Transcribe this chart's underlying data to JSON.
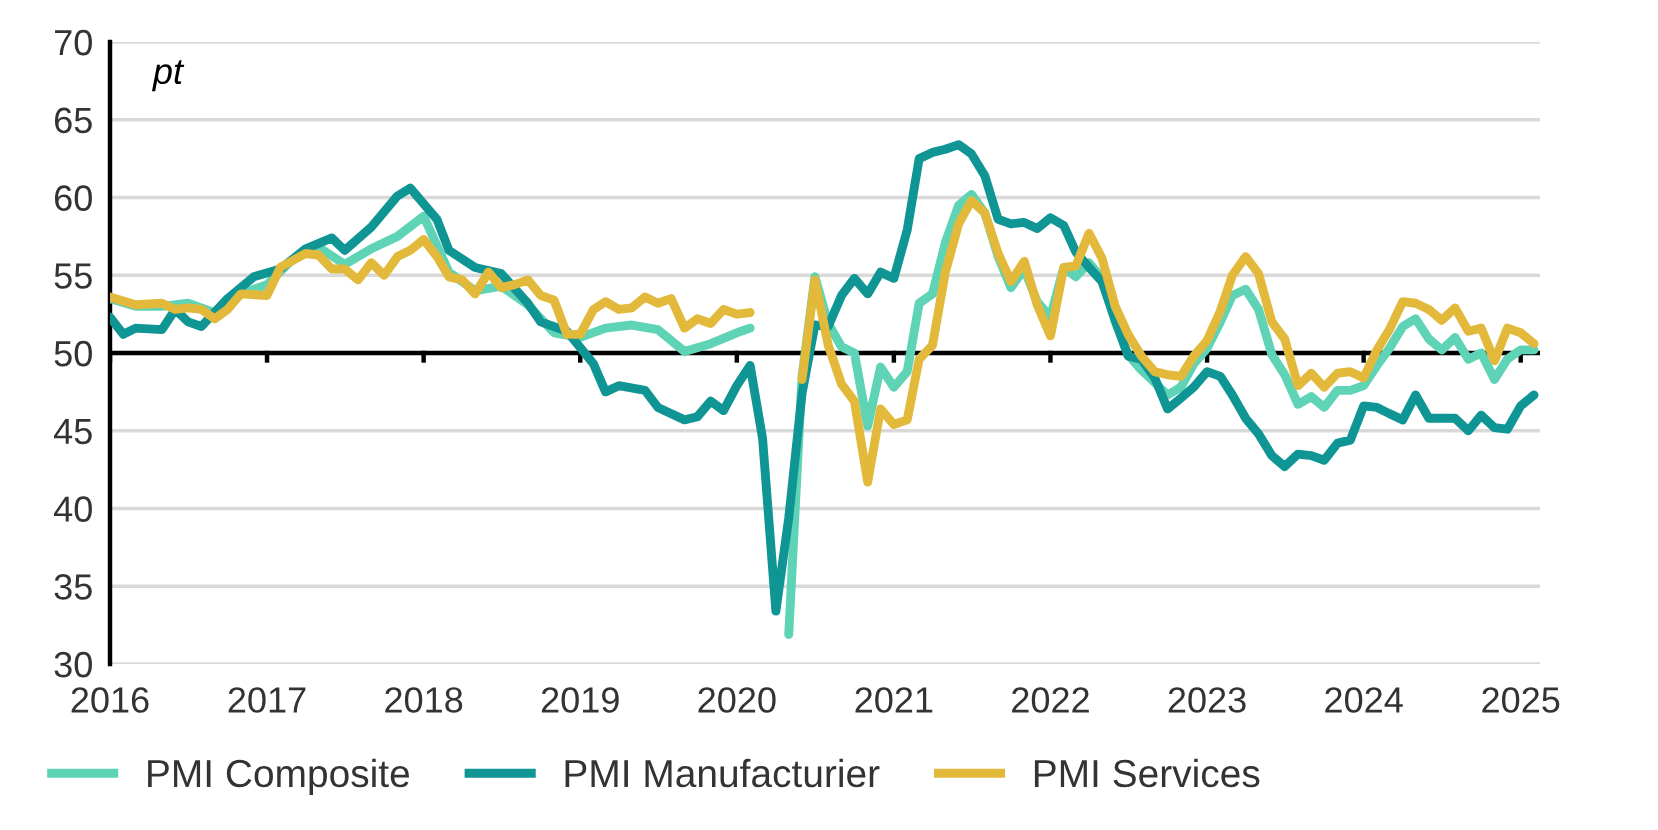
{
  "chart_data": {
    "type": "line",
    "ylabel": "pt",
    "xlim": [
      "2016-01-01",
      "2025-02-15"
    ],
    "xticks": [
      {
        "value": "2016-01-01",
        "label": "2016"
      },
      {
        "value": "2017-01-01",
        "label": "2017"
      },
      {
        "value": "2018-01-01",
        "label": "2018"
      },
      {
        "value": "2019-01-01",
        "label": "2019"
      },
      {
        "value": "2020-01-01",
        "label": "2020"
      },
      {
        "value": "2021-01-01",
        "label": "2021"
      },
      {
        "value": "2022-01-01",
        "label": "2022"
      },
      {
        "value": "2023-01-01",
        "label": "2023"
      },
      {
        "value": "2024-01-01",
        "label": "2024"
      },
      {
        "value": "2025-01-01",
        "label": "2025"
      }
    ],
    "ylim": [
      30,
      70
    ],
    "yticks": [
      30,
      35,
      40,
      45,
      50,
      55,
      60,
      65,
      70
    ],
    "grid": "y",
    "legend": "bottom",
    "line_style": "solid",
    "marker": "none",
    "ref_lines": [
      {
        "axis": "y",
        "value": 50,
        "color": "#000000"
      }
    ],
    "series": [
      {
        "name": "PMI Composite",
        "color": "#5fd3b5",
        "x": [
          "2016-01",
          "2016-03",
          "2016-05",
          "2016-07",
          "2016-09",
          "2016-11",
          "2017-01",
          "2017-03",
          "2017-05",
          "2017-07",
          "2017-09",
          "2017-11",
          "2018-01",
          "2018-03",
          "2018-05",
          "2018-07",
          "2018-09",
          "2018-11",
          "2019-01",
          "2019-03",
          "2019-05",
          "2019-07",
          "2019-09",
          "2019-11",
          "2020-01",
          "2020-02",
          "2020-03",
          "2020-04",
          "2020-05",
          "2020-06",
          "2020-07",
          "2020-08",
          "2020-09",
          "2020-10",
          "2020-11",
          "2020-12",
          "2021-01",
          "2021-02",
          "2021-03",
          "2021-04",
          "2021-05",
          "2021-06",
          "2021-07",
          "2021-08",
          "2021-09",
          "2021-10",
          "2021-11",
          "2021-12",
          "2022-01",
          "2022-02",
          "2022-03",
          "2022-04",
          "2022-05",
          "2022-06",
          "2022-07",
          "2022-08",
          "2022-09",
          "2022-10",
          "2022-11",
          "2022-12",
          "2023-01",
          "2023-02",
          "2023-03",
          "2023-04",
          "2023-05",
          "2023-06",
          "2023-07",
          "2023-08",
          "2023-09",
          "2023-10",
          "2023-11",
          "2023-12",
          "2024-01",
          "2024-02",
          "2024-03",
          "2024-04",
          "2024-05",
          "2024-06",
          "2024-07",
          "2024-08",
          "2024-09",
          "2024-10",
          "2024-11",
          "2024-12",
          "2025-01",
          "2025-02"
        ],
        "values": [
          53.5,
          53,
          53,
          53.2,
          52.6,
          53.8,
          54.4,
          56,
          56.8,
          55.7,
          56.7,
          57.5,
          58.8,
          55.2,
          54,
          54.3,
          53.1,
          51.3,
          51,
          51.6,
          51.8,
          51.5,
          50.1,
          50.6,
          51.3,
          51.6,
          null,
          null,
          31.9,
          48.5,
          54.9,
          51.9,
          50.4,
          50,
          45.3,
          49.1,
          47.8,
          48.8,
          53.2,
          53.8,
          57.1,
          59.5,
          60.2,
          59,
          56.2,
          54.2,
          55.4,
          53.3,
          52.3,
          55.5,
          54.9,
          55.8,
          54.8,
          52,
          49.9,
          48.9,
          48.1,
          47.3,
          47.8,
          49.3,
          50.3,
          52,
          53.7,
          54.1,
          52.8,
          49.9,
          48.6,
          46.7,
          47.2,
          46.5,
          47.6,
          47.6,
          47.9,
          49.2,
          50.3,
          51.7,
          52.2,
          50.9,
          50.2,
          51,
          49.6,
          50,
          48.3,
          49.6,
          50.2,
          50.2
        ]
      },
      {
        "name": "PMI Manufacturier",
        "color": "#0e9594",
        "x": [
          "2016-01",
          "2016-02",
          "2016-03",
          "2016-05",
          "2016-06",
          "2016-07",
          "2016-08",
          "2016-10",
          "2016-12",
          "2017-02",
          "2017-04",
          "2017-06",
          "2017-07",
          "2017-09",
          "2017-11",
          "2017-12",
          "2018-02",
          "2018-03",
          "2018-05",
          "2018-07",
          "2018-09",
          "2018-10",
          "2018-12",
          "2019-02",
          "2019-03",
          "2019-04",
          "2019-06",
          "2019-07",
          "2019-09",
          "2019-10",
          "2019-11",
          "2019-12",
          "2020-01",
          "2020-02",
          "2020-03",
          "2020-04",
          "2020-05",
          "2020-06",
          "2020-07",
          "2020-08",
          "2020-09",
          "2020-10",
          "2020-11",
          "2020-12",
          "2021-01",
          "2021-02",
          "2021-03",
          "2021-04",
          "2021-05",
          "2021-06",
          "2021-07",
          "2021-08",
          "2021-09",
          "2021-10",
          "2021-11",
          "2021-12",
          "2022-01",
          "2022-02",
          "2022-03",
          "2022-04",
          "2022-05",
          "2022-06",
          "2022-07",
          "2022-08",
          "2022-09",
          "2022-10",
          "2022-11",
          "2022-12",
          "2023-01",
          "2023-02",
          "2023-03",
          "2023-04",
          "2023-05",
          "2023-06",
          "2023-07",
          "2023-08",
          "2023-09",
          "2023-10",
          "2023-11",
          "2023-12",
          "2024-01",
          "2024-02",
          "2024-03",
          "2024-04",
          "2024-05",
          "2024-06",
          "2024-07",
          "2024-08",
          "2024-09",
          "2024-10",
          "2024-11",
          "2024-12",
          "2025-01",
          "2025-02"
        ],
        "values": [
          52.3,
          51.2,
          51.6,
          51.5,
          52.8,
          52,
          51.7,
          53.5,
          54.9,
          55.4,
          56.7,
          57.4,
          56.6,
          58.1,
          60.1,
          60.6,
          58.6,
          56.6,
          55.5,
          55.1,
          53.2,
          52,
          51.4,
          49.3,
          47.5,
          47.9,
          47.6,
          46.5,
          45.7,
          45.9,
          46.9,
          46.3,
          47.9,
          49.2,
          44.5,
          33.4,
          39.4,
          47.4,
          51.8,
          51.7,
          53.7,
          54.8,
          53.8,
          55.2,
          54.8,
          57.9,
          62.5,
          62.9,
          63.1,
          63.4,
          62.8,
          61.4,
          58.6,
          58.3,
          58.4,
          58,
          58.7,
          58.2,
          56.5,
          55.5,
          54.6,
          52.1,
          49.8,
          49.6,
          48.4,
          46.4,
          47.1,
          47.8,
          48.8,
          48.5,
          47.3,
          45.8,
          44.8,
          43.4,
          42.7,
          43.5,
          43.4,
          43.1,
          44.2,
          44.4,
          46.6,
          46.5,
          46.1,
          45.7,
          47.3,
          45.8,
          45.8,
          45.8,
          45,
          46,
          45.2,
          45.1,
          46.6,
          47.3
        ]
      },
      {
        "name": "PMI Services",
        "color": "#e2b93b",
        "x": [
          "2016-01",
          "2016-03",
          "2016-05",
          "2016-06",
          "2016-07",
          "2016-08",
          "2016-09",
          "2016-10",
          "2016-11",
          "2017-01",
          "2017-02",
          "2017-04",
          "2017-05",
          "2017-06",
          "2017-07",
          "2017-08",
          "2017-09",
          "2017-10",
          "2017-11",
          "2017-12",
          "2018-01",
          "2018-02",
          "2018-03",
          "2018-04",
          "2018-05",
          "2018-06",
          "2018-07",
          "2018-08",
          "2018-09",
          "2018-10",
          "2018-11",
          "2018-12",
          "2019-01",
          "2019-02",
          "2019-03",
          "2019-04",
          "2019-05",
          "2019-06",
          "2019-07",
          "2019-08",
          "2019-09",
          "2019-10",
          "2019-11",
          "2019-12",
          "2020-01",
          "2020-02",
          "2020-03",
          "2020-04",
          "2020-05",
          "2020-06",
          "2020-07",
          "2020-08",
          "2020-09",
          "2020-10",
          "2020-11",
          "2020-12",
          "2021-01",
          "2021-02",
          "2021-03",
          "2021-04",
          "2021-05",
          "2021-06",
          "2021-07",
          "2021-08",
          "2021-09",
          "2021-10",
          "2021-11",
          "2021-12",
          "2022-01",
          "2022-02",
          "2022-03",
          "2022-04",
          "2022-05",
          "2022-06",
          "2022-07",
          "2022-08",
          "2022-09",
          "2022-10",
          "2022-11",
          "2022-12",
          "2023-01",
          "2023-02",
          "2023-03",
          "2023-04",
          "2023-05",
          "2023-06",
          "2023-07",
          "2023-08",
          "2023-09",
          "2023-10",
          "2023-11",
          "2023-12",
          "2024-01",
          "2024-02",
          "2024-03",
          "2024-04",
          "2024-05",
          "2024-06",
          "2024-07",
          "2024-08",
          "2024-09",
          "2024-10",
          "2024-11",
          "2024-12",
          "2025-01",
          "2025-02"
        ],
        "values": [
          53.6,
          53.1,
          53.2,
          52.8,
          52.9,
          52.8,
          52.2,
          52.8,
          53.8,
          53.7,
          55.5,
          56.4,
          56.3,
          55.4,
          55.4,
          54.7,
          55.8,
          55,
          56.2,
          56.6,
          57.3,
          56.2,
          54.9,
          54.7,
          53.8,
          55.2,
          54.2,
          54.4,
          54.7,
          53.7,
          53.4,
          51.2,
          51.2,
          52.8,
          53.3,
          52.8,
          52.9,
          53.6,
          53.2,
          53.5,
          51.6,
          52.2,
          51.9,
          52.8,
          52.5,
          52.6,
          null,
          null,
          null,
          48.3,
          54.7,
          50.5,
          48,
          46.9,
          41.7,
          46.4,
          45.4,
          45.7,
          49.6,
          50.5,
          55.2,
          58.3,
          59.8,
          59,
          56.4,
          54.6,
          55.9,
          53.1,
          51.1,
          55.5,
          55.6,
          57.7,
          56.1,
          53,
          51.2,
          49.8,
          48.8,
          48.6,
          48.5,
          49.8,
          50.8,
          52.7,
          55,
          56.2,
          55.1,
          52,
          50.9,
          47.9,
          48.7,
          47.8,
          48.7,
          48.8,
          48.4,
          50.2,
          51.5,
          53.3,
          53.2,
          52.8,
          52.1,
          52.9,
          51.4,
          51.6,
          49.5,
          51.6,
          51.3,
          50.6
        ]
      }
    ]
  }
}
